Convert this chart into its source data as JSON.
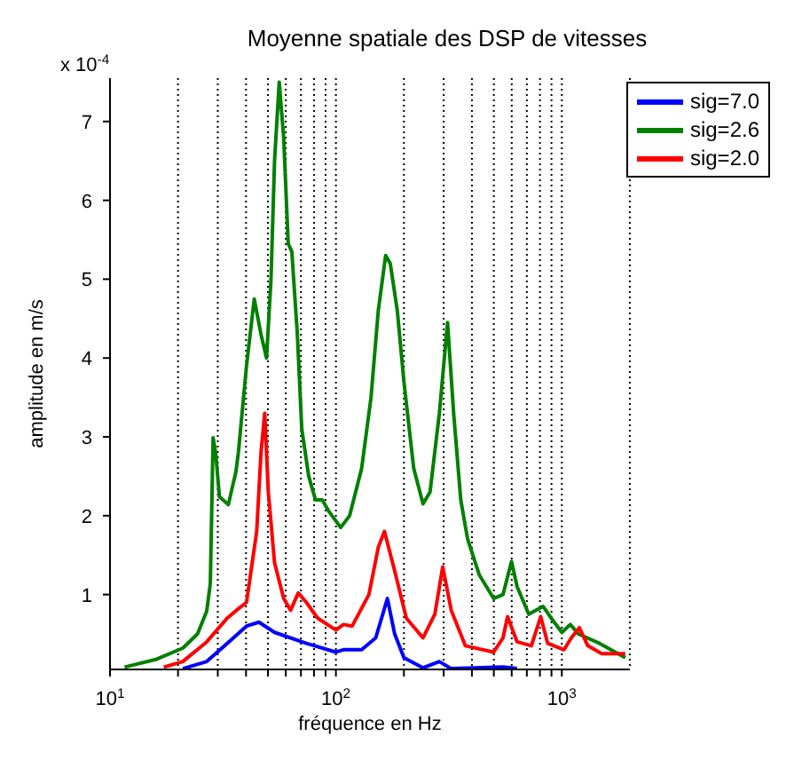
{
  "chart_data": {
    "type": "line",
    "title": "Moyenne spatiale des DSP de vitesses",
    "xlabel": "fréquence en Hz",
    "ylabel": "amplitude en m/s",
    "annotations": [
      "x 10$^{-4}$"
    ],
    "log": "x",
    "grid": "x",
    "legend": "top right",
    "marker": "none",
    "line_style": "solid",
    "xlim": [
      10,
      2000
    ],
    "xticks": [
      {
        "value": 10,
        "label": "10$^{1}$"
      },
      {
        "value": 20,
        "label": null
      },
      {
        "value": 30,
        "label": null
      },
      {
        "value": 40,
        "label": null
      },
      {
        "value": 50,
        "label": null
      },
      {
        "value": 60,
        "label": null
      },
      {
        "value": 70,
        "label": null
      },
      {
        "value": 80,
        "label": null
      },
      {
        "value": 90,
        "label": null
      },
      {
        "value": 100,
        "label": "10$^{2}$"
      },
      {
        "value": 200,
        "label": null
      },
      {
        "value": 300,
        "label": null
      },
      {
        "value": 400,
        "label": null
      },
      {
        "value": 500,
        "label": null
      },
      {
        "value": 600,
        "label": null
      },
      {
        "value": 700,
        "label": null
      },
      {
        "value": 800,
        "label": null
      },
      {
        "value": 900,
        "label": null
      },
      {
        "value": 1000,
        "label": "10$^{3}$"
      }
    ],
    "ylim": [
      0.05,
      7.55
    ],
    "yticks": [
      1,
      2,
      3,
      4,
      5,
      6,
      7
    ],
    "series": [
      {
        "name": "sig=7.0",
        "color": "#0000ff",
        "x": [
          21,
          26.8,
          33.6,
          40.2,
          45.6,
          53.5,
          74,
          100,
          108,
          130,
          150,
          169,
          182,
          200,
          243,
          287,
          324,
          549,
          634
        ],
        "values": [
          0.06,
          0.15,
          0.4,
          0.6,
          0.65,
          0.52,
          0.38,
          0.27,
          0.3,
          0.3,
          0.45,
          0.95,
          0.5,
          0.2,
          0.07,
          0.15,
          0.06,
          0.08,
          0.06
        ]
      },
      {
        "name": "sig=2.6",
        "color": "#008000",
        "x": [
          11.6,
          16.1,
          21,
          24.4,
          26.8,
          27.8,
          28.6,
          29.4,
          30.5,
          33.4,
          36.1,
          37,
          40.2,
          43.5,
          46.6,
          49.3,
          51.6,
          53.5,
          56.1,
          58.7,
          61.5,
          63.8,
          67.5,
          70.6,
          75.8,
          81.2,
          87,
          93.3,
          105,
          115,
          130,
          143,
          154,
          166,
          174,
          187,
          200,
          221,
          243,
          261,
          287,
          312,
          332,
          357,
          383,
          431,
          499,
          549,
          599,
          634,
          714,
          826,
          908,
          1000,
          1090,
          1183,
          1469,
          1910
        ],
        "values": [
          0.08,
          0.18,
          0.32,
          0.5,
          0.79,
          1.14,
          2.99,
          2.78,
          2.24,
          2.14,
          2.56,
          2.8,
          3.9,
          4.75,
          4.3,
          4.0,
          5.0,
          6.5,
          7.5,
          6.8,
          5.45,
          5.35,
          4.3,
          3.1,
          2.5,
          2.2,
          2.2,
          2.05,
          1.85,
          2.0,
          2.6,
          3.5,
          4.6,
          5.3,
          5.2,
          4.6,
          3.7,
          2.6,
          2.15,
          2.3,
          3.3,
          4.45,
          3.3,
          2.2,
          1.7,
          1.25,
          0.95,
          1.0,
          1.42,
          1.1,
          0.75,
          0.85,
          0.68,
          0.52,
          0.62,
          0.5,
          0.38,
          0.2
        ]
      },
      {
        "name": "sig=2.0",
        "color": "#ff0000",
        "x": [
          17.3,
          21,
          26.8,
          33,
          37,
          40.2,
          44.6,
          46.6,
          48.4,
          50.2,
          53.5,
          58.7,
          63,
          68.1,
          74,
          83,
          100,
          108,
          118,
          140,
          154,
          164,
          182,
          205,
          243,
          274,
          297,
          324,
          374,
          499,
          549,
          575,
          634,
          733,
          806,
          866,
          1023,
          1101,
          1194,
          1303,
          1503,
          1910
        ],
        "values": [
          0.08,
          0.15,
          0.4,
          0.7,
          0.82,
          0.9,
          1.8,
          2.8,
          3.3,
          2.3,
          1.4,
          0.95,
          0.8,
          1.02,
          0.9,
          0.7,
          0.55,
          0.62,
          0.6,
          1.0,
          1.6,
          1.8,
          1.3,
          0.7,
          0.45,
          0.75,
          1.35,
          0.8,
          0.35,
          0.27,
          0.45,
          0.72,
          0.4,
          0.35,
          0.72,
          0.38,
          0.3,
          0.45,
          0.58,
          0.35,
          0.25,
          0.25
        ]
      }
    ]
  }
}
